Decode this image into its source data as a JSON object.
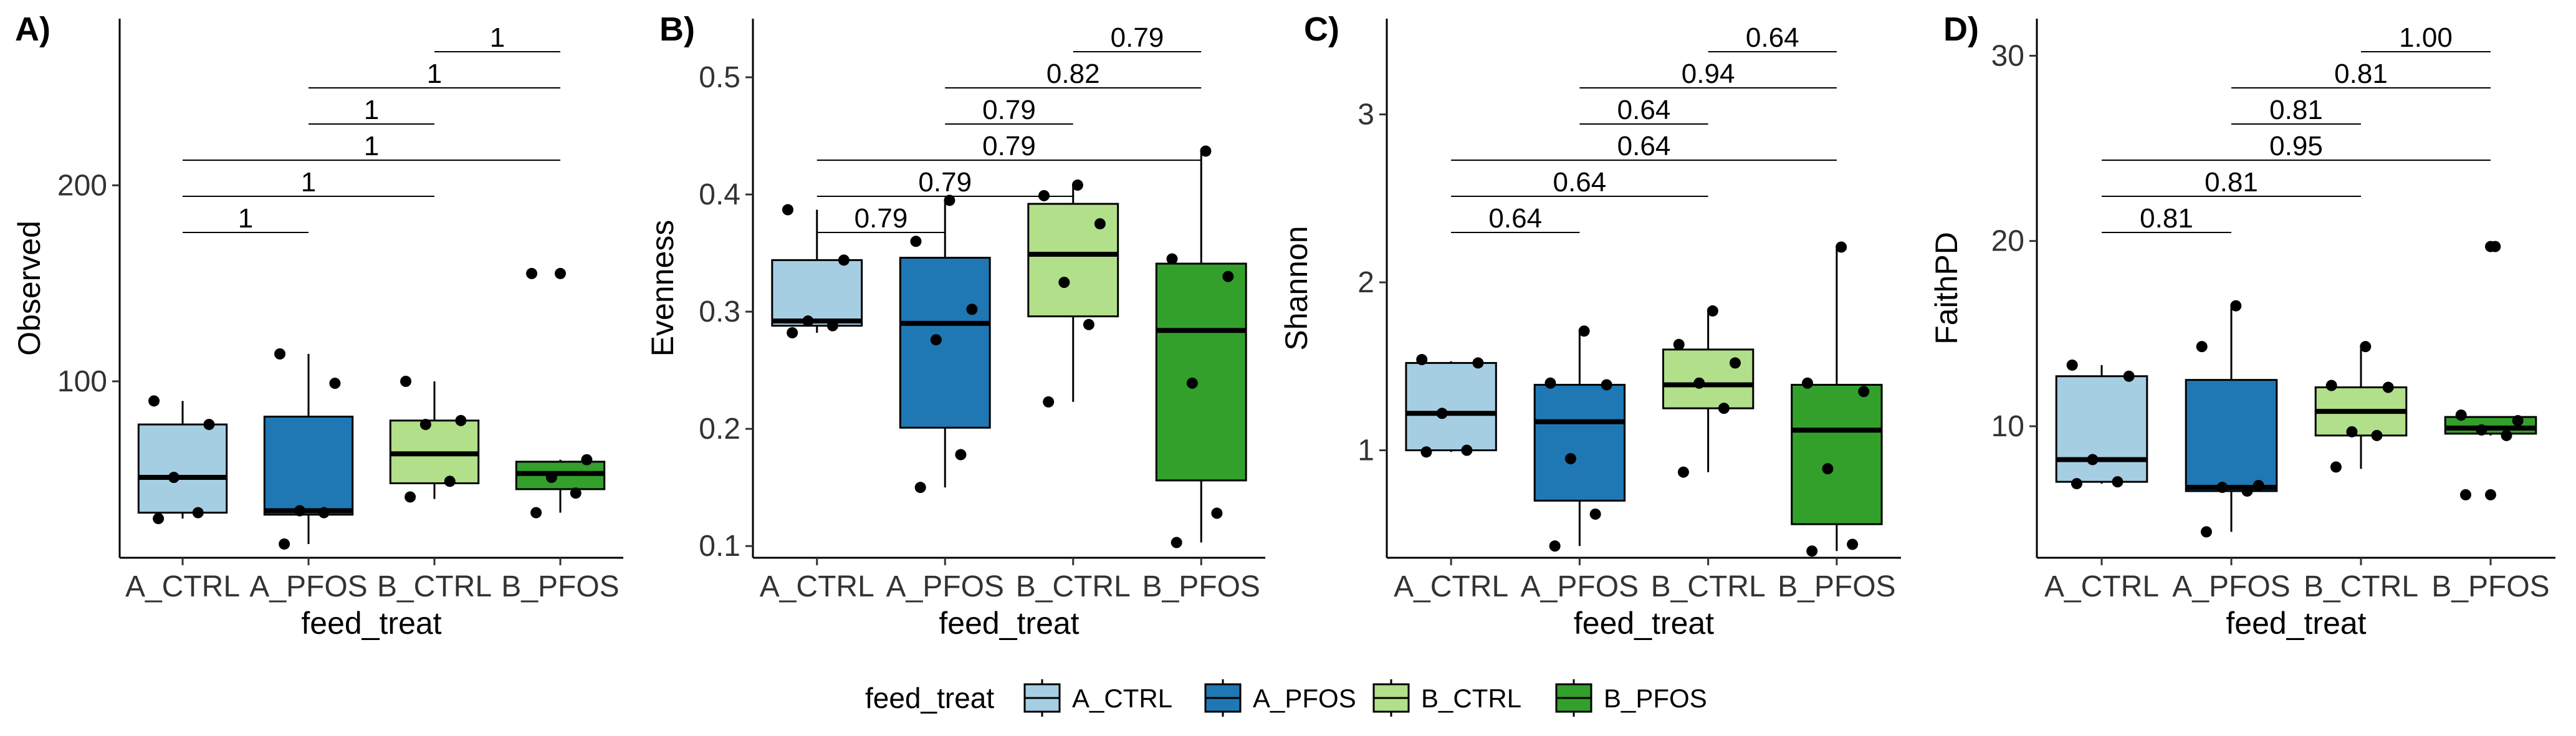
{
  "colors": {
    "A_CTRL": "#a6cee3",
    "A_PFOS": "#1f78b4",
    "B_CTRL": "#b2df8a",
    "B_PFOS": "#33a02c"
  },
  "legend": {
    "title": "feed_treat",
    "entries": [
      "A_CTRL",
      "A_PFOS",
      "B_CTRL",
      "B_PFOS"
    ],
    "position": "bottom"
  },
  "chart_data": [
    {
      "type": "box",
      "tag": "A)",
      "xlabel": "feed_treat",
      "ylabel": "Observed",
      "categories": [
        "A_CTRL",
        "A_PFOS",
        "B_CTRL",
        "B_PFOS"
      ],
      "ylim": [
        10,
        285
      ],
      "yticks": [
        100,
        200
      ],
      "boxes": [
        {
          "q1": 33,
          "median": 51,
          "q3": 78,
          "min": 30,
          "max": 90
        },
        {
          "q1": 32,
          "median": 34,
          "q3": 82,
          "min": 17,
          "max": 114
        },
        {
          "q1": 48,
          "median": 63,
          "q3": 80,
          "min": 40,
          "max": 100
        },
        {
          "q1": 45,
          "median": 53,
          "q3": 59,
          "min": 33,
          "max": 60
        }
      ],
      "outliers": [
        null,
        null,
        null,
        [
          155
        ]
      ],
      "points": [
        [
          30,
          33,
          51,
          78,
          90
        ],
        [
          17,
          33,
          34,
          99,
          114
        ],
        [
          41,
          49,
          78,
          80,
          100
        ],
        [
          33,
          43,
          51,
          60,
          155
        ]
      ],
      "comparisons": [
        {
          "from": 1,
          "to": 2,
          "label": "1"
        },
        {
          "from": 1,
          "to": 3,
          "label": "1"
        },
        {
          "from": 1,
          "to": 4,
          "label": "1"
        },
        {
          "from": 2,
          "to": 3,
          "label": "1"
        },
        {
          "from": 2,
          "to": 4,
          "label": "1"
        },
        {
          "from": 3,
          "to": 4,
          "label": "1"
        }
      ]
    },
    {
      "type": "box",
      "tag": "B)",
      "xlabel": "feed_treat",
      "ylabel": "Evenness",
      "categories": [
        "A_CTRL",
        "A_PFOS",
        "B_CTRL",
        "B_PFOS"
      ],
      "ylim": [
        0.09,
        0.55
      ],
      "yticks": [
        0.1,
        0.2,
        0.3,
        0.4,
        0.5
      ],
      "boxes": [
        {
          "q1": 0.288,
          "median": 0.292,
          "q3": 0.344,
          "min": 0.282,
          "max": 0.387
        },
        {
          "q1": 0.201,
          "median": 0.29,
          "q3": 0.346,
          "min": 0.15,
          "max": 0.395
        },
        {
          "q1": 0.296,
          "median": 0.349,
          "q3": 0.392,
          "min": 0.223,
          "max": 0.408
        },
        {
          "q1": 0.156,
          "median": 0.284,
          "q3": 0.341,
          "min": 0.103,
          "max": 0.437
        }
      ],
      "outliers": [
        null,
        null,
        null,
        null
      ],
      "points": [
        [
          0.282,
          0.288,
          0.292,
          0.344,
          0.387
        ],
        [
          0.15,
          0.178,
          0.276,
          0.302,
          0.36,
          0.395
        ],
        [
          0.223,
          0.289,
          0.325,
          0.375,
          0.399,
          0.408
        ],
        [
          0.103,
          0.128,
          0.239,
          0.33,
          0.345,
          0.437
        ]
      ],
      "comparisons": [
        {
          "from": 1,
          "to": 2,
          "label": "0.79"
        },
        {
          "from": 1,
          "to": 3,
          "label": "0.79"
        },
        {
          "from": 1,
          "to": 4,
          "label": "0.79"
        },
        {
          "from": 2,
          "to": 3,
          "label": "0.79"
        },
        {
          "from": 2,
          "to": 4,
          "label": "0.82"
        },
        {
          "from": 3,
          "to": 4,
          "label": "0.79"
        }
      ]
    },
    {
      "type": "box",
      "tag": "C)",
      "xlabel": "feed_treat",
      "ylabel": "Shannon",
      "categories": [
        "A_CTRL",
        "A_PFOS",
        "B_CTRL",
        "B_PFOS"
      ],
      "ylim": [
        0.36,
        3.57
      ],
      "yticks": [
        1,
        2,
        3
      ],
      "boxes": [
        {
          "q1": 1.0,
          "median": 1.22,
          "q3": 1.52,
          "min": 0.99,
          "max": 1.53
        },
        {
          "q1": 0.7,
          "median": 1.17,
          "q3": 1.39,
          "min": 0.43,
          "max": 1.7
        },
        {
          "q1": 1.25,
          "median": 1.39,
          "q3": 1.6,
          "min": 0.87,
          "max": 1.82
        },
        {
          "q1": 0.56,
          "median": 1.12,
          "q3": 1.39,
          "min": 0.4,
          "max": 2.2
        }
      ],
      "outliers": [
        null,
        null,
        null,
        null
      ],
      "points": [
        [
          0.99,
          1.0,
          1.22,
          1.52,
          1.54
        ],
        [
          0.43,
          0.62,
          0.95,
          1.39,
          1.4,
          1.71
        ],
        [
          0.87,
          1.25,
          1.4,
          1.52,
          1.63,
          1.83
        ],
        [
          0.4,
          0.44,
          0.89,
          1.35,
          1.4,
          2.21
        ]
      ],
      "comparisons": [
        {
          "from": 1,
          "to": 2,
          "label": "0.64"
        },
        {
          "from": 1,
          "to": 3,
          "label": "0.64"
        },
        {
          "from": 1,
          "to": 4,
          "label": "0.64"
        },
        {
          "from": 2,
          "to": 3,
          "label": "0.64"
        },
        {
          "from": 2,
          "to": 4,
          "label": "0.94"
        },
        {
          "from": 3,
          "to": 4,
          "label": "0.64"
        }
      ]
    },
    {
      "type": "box",
      "tag": "D)",
      "xlabel": "feed_treat",
      "ylabel": "FaithPD",
      "categories": [
        "A_CTRL",
        "A_PFOS",
        "B_CTRL",
        "B_PFOS"
      ],
      "ylim": [
        2.9,
        32.0
      ],
      "yticks": [
        10,
        20,
        30
      ],
      "boxes": [
        {
          "q1": 7.0,
          "median": 8.2,
          "q3": 12.7,
          "min": 6.9,
          "max": 13.3
        },
        {
          "q1": 6.5,
          "median": 6.7,
          "q3": 12.5,
          "min": 4.3,
          "max": 16.4
        },
        {
          "q1": 9.5,
          "median": 10.8,
          "q3": 12.1,
          "min": 7.7,
          "max": 14.2
        },
        {
          "q1": 9.6,
          "median": 9.9,
          "q3": 10.5,
          "min": 9.5,
          "max": 10.5
        }
      ],
      "outliers": [
        null,
        null,
        null,
        [
          19.7,
          6.3
        ]
      ],
      "points": [
        [
          6.9,
          7.0,
          8.2,
          12.7,
          13.3
        ],
        [
          4.3,
          6.5,
          6.7,
          6.8,
          14.3,
          16.5
        ],
        [
          7.8,
          9.5,
          9.7,
          12.1,
          12.2,
          14.3
        ],
        [
          6.3,
          9.5,
          9.8,
          10.3,
          10.6,
          19.7
        ]
      ],
      "comparisons": [
        {
          "from": 1,
          "to": 2,
          "label": "0.81"
        },
        {
          "from": 1,
          "to": 3,
          "label": "0.81"
        },
        {
          "from": 1,
          "to": 4,
          "label": "0.95"
        },
        {
          "from": 2,
          "to": 3,
          "label": "0.81"
        },
        {
          "from": 2,
          "to": 4,
          "label": "0.81"
        },
        {
          "from": 3,
          "to": 4,
          "label": "1.00"
        }
      ]
    }
  ]
}
